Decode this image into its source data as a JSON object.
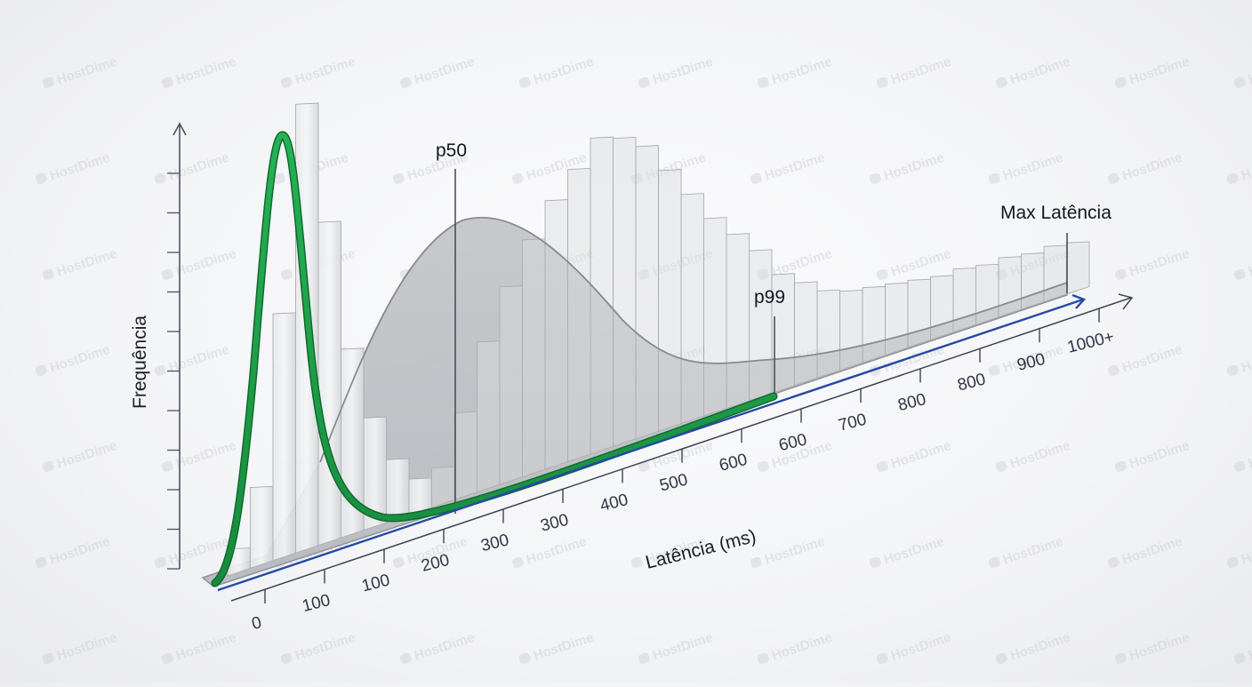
{
  "chart_data": {
    "type": "bar",
    "subtype": "histogram-3d-perspective-with-density-curves",
    "title": "",
    "xlabel": "Latência (ms)",
    "ylabel": "Frequência",
    "x_tick_labels": [
      "0",
      "100",
      "100",
      "200",
      "300",
      "300",
      "400",
      "500",
      "600",
      "600",
      "700",
      "800",
      "800",
      "900",
      "1000+"
    ],
    "x_tick_labels_note": "tick labels as rendered (duplicated values appear in image)",
    "y_tick_count": 11,
    "y_tick_labels": [],
    "grid": false,
    "legend": null,
    "markers": [
      {
        "label": "p50",
        "x_approx_ms": 220
      },
      {
        "label": "p99",
        "x_approx_ms": 650
      },
      {
        "label": "Max Latência",
        "x_approx_ms": 1000
      }
    ],
    "series": [
      {
        "name": "gray-histogram-bars",
        "kind": "bar",
        "color": "#bfc2c7",
        "values_relative": [
          0.06,
          0.18,
          0.55,
          1.0,
          0.72,
          0.42,
          0.25,
          0.14,
          0.08,
          0.1,
          0.22,
          0.38,
          0.5,
          0.6,
          0.68,
          0.74,
          0.8,
          0.78,
          0.74,
          0.66,
          0.58,
          0.5,
          0.44,
          0.38,
          0.3,
          0.26,
          0.22,
          0.2,
          0.19,
          0.18,
          0.17,
          0.16,
          0.16,
          0.15,
          0.15,
          0.14,
          0.14,
          0.13
        ]
      },
      {
        "name": "gray-density-curve",
        "kind": "area",
        "color": "#9a9da3",
        "shape": "broad right-skewed hump peaking near 250 ms, long tail to 1000+ ms"
      },
      {
        "name": "green-density-curve",
        "kind": "line",
        "color": "#1f9a47",
        "shape": "sharp narrow peak near 25 ms, decays to low floor by ~150 ms, then slowly rises to p99 (~650 ms)"
      }
    ],
    "axis_colors": {
      "x_axis": "#3d4452",
      "baseline_blue": "#2549a8",
      "y_axis": "#4b5263"
    }
  },
  "watermark": {
    "text": "HostDime"
  }
}
